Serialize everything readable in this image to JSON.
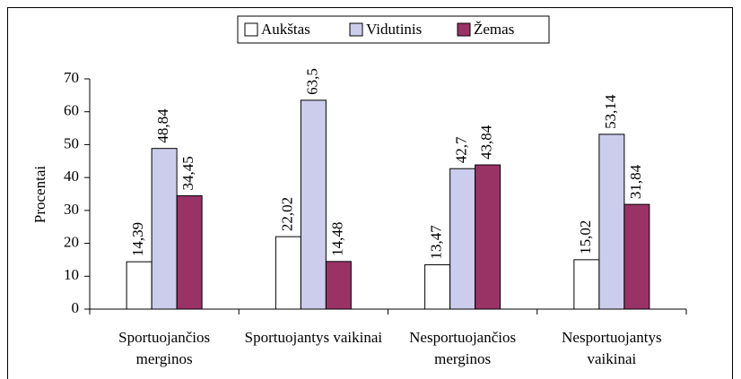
{
  "chart_data": {
    "type": "bar",
    "y_label": "Procentai",
    "categories": [
      "Sportuojančios merginos",
      "Sportuojantys vaikinai",
      "Nesportuojančios merginos",
      "Nesportuojantys vaikinai"
    ],
    "series": [
      {
        "name": "Aukštas",
        "color": "#ffffff",
        "values": [
          14.39,
          22.02,
          13.47,
          15.02
        ],
        "value_labels": [
          "14,39",
          "22,02",
          "13,47",
          "15,02"
        ]
      },
      {
        "name": "Vidutinis",
        "color": "#ccccec",
        "values": [
          48.84,
          63.5,
          42.7,
          53.14
        ],
        "value_labels": [
          "48,84",
          "63,5",
          "42,7",
          "53,14"
        ]
      },
      {
        "name": "Žemas",
        "color": "#993366",
        "values": [
          34.45,
          14.48,
          43.84,
          31.84
        ],
        "value_labels": [
          "34,45",
          "14,48",
          "43,84",
          "31,84"
        ]
      }
    ],
    "ylim": [
      0,
      70
    ],
    "yticks": [
      0,
      10,
      20,
      30,
      40,
      50,
      60,
      70
    ],
    "legend": "top"
  }
}
